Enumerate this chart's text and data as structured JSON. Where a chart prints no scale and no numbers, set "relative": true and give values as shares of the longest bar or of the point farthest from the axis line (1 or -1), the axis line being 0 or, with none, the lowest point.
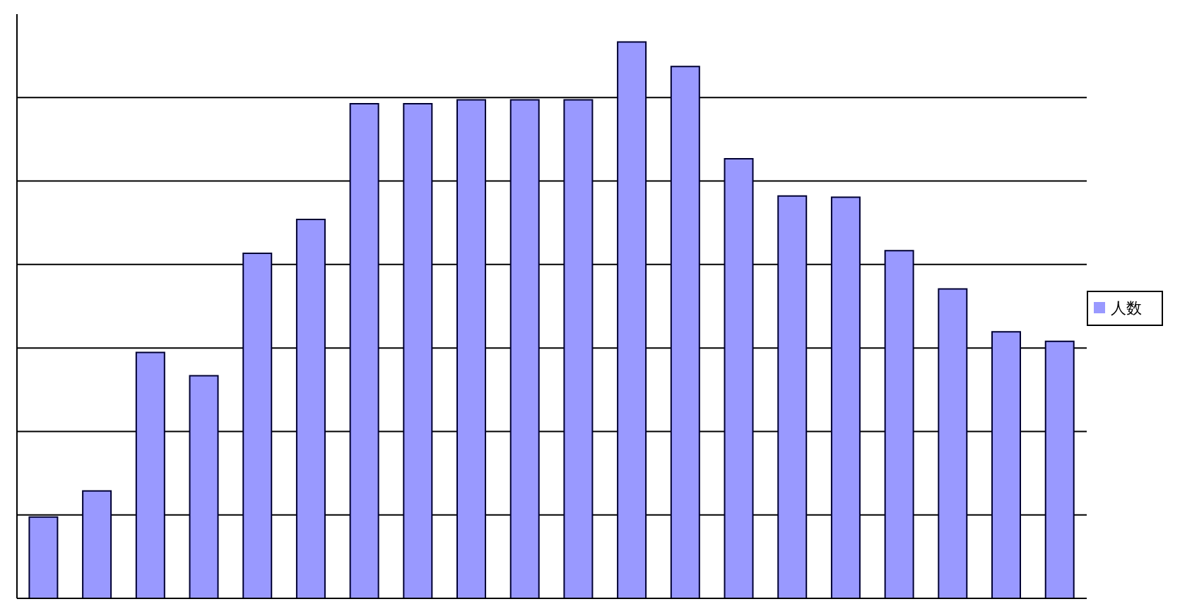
{
  "chart_data": {
    "type": "bar",
    "relative": true,
    "categories": [
      null,
      null,
      null,
      null,
      null,
      null,
      null,
      null,
      null,
      null,
      null,
      null,
      null,
      null,
      null,
      null,
      null,
      null,
      null,
      null
    ],
    "series": [
      {
        "name": "人数",
        "color": "#9999ff",
        "values": [
          0.146,
          0.193,
          0.442,
          0.4,
          0.62,
          0.681,
          0.889,
          0.889,
          0.896,
          0.896,
          0.896,
          1,
          0.956,
          0.79,
          0.723,
          0.721,
          0.625,
          0.556,
          0.479,
          0.462
        ]
      }
    ],
    "grid": "y",
    "legend": "right"
  }
}
